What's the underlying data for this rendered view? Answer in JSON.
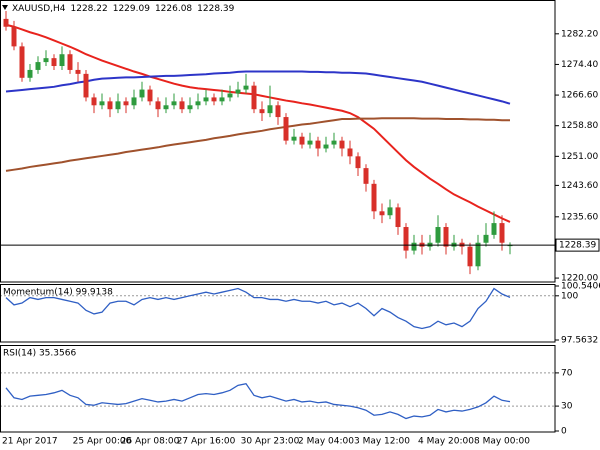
{
  "chart_data": [
    {
      "type": "candlestick",
      "title": "XAUUSD,H4",
      "header_values": [
        1228.22,
        1229.09,
        1226.08,
        1228.39
      ],
      "open": [
        1286,
        1284,
        1279,
        1271,
        1273,
        1275,
        1276,
        1274,
        1277,
        1273,
        1272,
        1266,
        1264,
        1265,
        1263,
        1265,
        1264,
        1266,
        1268,
        1265,
        1263,
        1264,
        1265,
        1263,
        1264,
        1265,
        1266,
        1265,
        1266,
        1267,
        1268,
        1269,
        1263,
        1262,
        1264,
        1261,
        1255,
        1256,
        1254,
        1255,
        1253,
        1254,
        1255,
        1253,
        1251,
        1248,
        1244,
        1237,
        1236,
        1238,
        1233,
        1227,
        1229,
        1228,
        1229,
        1233,
        1228,
        1229,
        1228,
        1223,
        1229,
        1231,
        1234,
        1228.22
      ],
      "high": [
        1288,
        1285.5,
        1280,
        1274.5,
        1276.5,
        1278,
        1277,
        1279,
        1278,
        1275,
        1273,
        1267,
        1267,
        1266,
        1267,
        1266,
        1268,
        1270,
        1269,
        1266,
        1266,
        1267,
        1266,
        1266,
        1267,
        1268,
        1267,
        1268,
        1269,
        1270,
        1272,
        1270,
        1265,
        1269,
        1265,
        1262,
        1258,
        1257,
        1257,
        1256,
        1256,
        1257,
        1256,
        1255,
        1252,
        1249,
        1245,
        1239,
        1240,
        1239,
        1234,
        1231,
        1231,
        1231,
        1236,
        1234,
        1231,
        1230,
        1229,
        1231,
        1234,
        1237,
        1236,
        1229.09
      ],
      "low": [
        1283,
        1278,
        1270,
        1270,
        1272,
        1274,
        1273,
        1273,
        1272,
        1270,
        1265,
        1262,
        1263,
        1261,
        1262,
        1262,
        1263,
        1265,
        1264,
        1261,
        1262,
        1263,
        1262,
        1262,
        1263,
        1264,
        1264,
        1264,
        1265,
        1266,
        1267,
        1262,
        1260,
        1261,
        1259,
        1254,
        1254,
        1253,
        1253,
        1251,
        1252,
        1253,
        1251,
        1249,
        1246,
        1242,
        1235,
        1234,
        1235,
        1231,
        1225,
        1226,
        1226,
        1227,
        1228,
        1226,
        1227,
        1226,
        1221,
        1222,
        1228,
        1230,
        1227,
        1226.08
      ],
      "close": [
        1284,
        1279,
        1271,
        1273,
        1275,
        1276,
        1274,
        1277,
        1273,
        1272,
        1266,
        1264,
        1265,
        1263,
        1265,
        1264,
        1266,
        1268,
        1265,
        1263,
        1264,
        1265,
        1263,
        1264,
        1265,
        1266,
        1265,
        1266,
        1267,
        1268,
        1269,
        1263,
        1262,
        1264,
        1261,
        1255,
        1256,
        1254,
        1255,
        1253,
        1254,
        1255,
        1253,
        1251,
        1248,
        1244,
        1237,
        1236,
        1238,
        1233,
        1227,
        1229,
        1228,
        1229,
        1233,
        1228,
        1229,
        1228,
        1223,
        1229,
        1231,
        1234,
        1229,
        1228.39
      ],
      "up_color": "#2e9b3e",
      "down_color": "#d8302a",
      "lines": [
        {
          "color": "#e8231d",
          "values": [
            1284.5,
            1284,
            1283.3,
            1282.6,
            1282,
            1281.3,
            1280.5,
            1279.7,
            1278.9,
            1278,
            1277,
            1276.2,
            1275.4,
            1274.7,
            1274,
            1273.3,
            1272.6,
            1272,
            1271.3,
            1270.7,
            1270.1,
            1269.5,
            1269,
            1268.6,
            1268.3,
            1268.1,
            1267.9,
            1267.7,
            1267.4,
            1267.2,
            1267,
            1266.8,
            1266.4,
            1266,
            1265.6,
            1265.2,
            1264.9,
            1264.5,
            1264.2,
            1263.8,
            1263.4,
            1263,
            1262.6,
            1262,
            1261,
            1259.5,
            1258,
            1256,
            1254,
            1252,
            1250,
            1248.3,
            1246.8,
            1245.3,
            1244,
            1242.6,
            1241.3,
            1240.3,
            1239.3,
            1238.2,
            1237.2,
            1236.2,
            1235.2,
            1234.3
          ]
        },
        {
          "color": "#2d35c8",
          "values": [
            1267.5,
            1267.7,
            1267.9,
            1268.1,
            1268.3,
            1268.5,
            1268.7,
            1269.1,
            1269.4,
            1269.8,
            1270.1,
            1270.5,
            1270.8,
            1270.9,
            1271,
            1271.1,
            1271.1,
            1271.2,
            1271.3,
            1271.4,
            1271.5,
            1271.5,
            1271.6,
            1271.7,
            1271.8,
            1271.9,
            1272.1,
            1272.2,
            1272.3,
            1272.5,
            1272.6,
            1272.6,
            1272.6,
            1272.6,
            1272.6,
            1272.6,
            1272.6,
            1272.6,
            1272.5,
            1272.5,
            1272.4,
            1272.4,
            1272.3,
            1272.3,
            1272.2,
            1272.1,
            1271.8,
            1271.5,
            1271.2,
            1270.9,
            1270.6,
            1270.3,
            1270,
            1269.5,
            1269,
            1268.5,
            1268,
            1267.5,
            1267,
            1266.5,
            1266,
            1265.5,
            1265,
            1264.4
          ]
        },
        {
          "color": "#a0522d",
          "values": [
            1247.3,
            1247.6,
            1247.9,
            1248.3,
            1248.6,
            1248.9,
            1249.2,
            1249.5,
            1249.9,
            1250.2,
            1250.5,
            1250.8,
            1251.1,
            1251.4,
            1251.7,
            1252.1,
            1252.4,
            1252.7,
            1253,
            1253.3,
            1253.7,
            1254,
            1254.3,
            1254.6,
            1254.9,
            1255.2,
            1255.6,
            1255.9,
            1256.2,
            1256.6,
            1256.9,
            1257.2,
            1257.5,
            1257.9,
            1258.2,
            1258.5,
            1258.8,
            1259.1,
            1259.3,
            1259.6,
            1259.9,
            1260.2,
            1260.5,
            1260.5,
            1260.6,
            1260.6,
            1260.6,
            1260.7,
            1260.7,
            1260.7,
            1260.7,
            1260.7,
            1260.6,
            1260.6,
            1260.6,
            1260.5,
            1260.5,
            1260.5,
            1260.4,
            1260.4,
            1260.3,
            1260.3,
            1260.2,
            1260.2
          ]
        }
      ],
      "last_price": 1228.39,
      "ylim": [
        1219,
        1290.3
      ],
      "yticks": [
        {
          "value": 1220,
          "label": "1220.00"
        },
        {
          "value": 1235.6,
          "label": "1235.60"
        },
        {
          "value": 1243.6,
          "label": "1243.60"
        },
        {
          "value": 1251,
          "label": "1251.00"
        },
        {
          "value": 1258.8,
          "label": "1258.80"
        },
        {
          "value": 1266.6,
          "label": "1266.60"
        },
        {
          "value": 1274.4,
          "label": "1274.40"
        },
        {
          "value": 1282.2,
          "label": "1282.20"
        }
      ]
    },
    {
      "type": "line",
      "title": "Momentum(14) 99.9138",
      "color": "#2f5fc4",
      "values": [
        99.9,
        99.5,
        99.6,
        99.9,
        99.8,
        99.9,
        99.9,
        99.8,
        99.7,
        99.6,
        99.2,
        99,
        99.1,
        99.6,
        99.7,
        99.7,
        99.5,
        99.8,
        99.9,
        99.8,
        99.9,
        99.8,
        99.9,
        100,
        100.1,
        100.2,
        100.1,
        100.2,
        100.3,
        100.4,
        100.2,
        99.9,
        99.9,
        99.8,
        99.8,
        99.7,
        99.8,
        99.7,
        99.7,
        99.6,
        99.7,
        99.5,
        99.6,
        99.4,
        99.6,
        99.3,
        98.9,
        99.3,
        99.1,
        98.8,
        98.6,
        98.3,
        98.2,
        98.3,
        98.6,
        98.4,
        98.5,
        98.3,
        98.6,
        99.3,
        99.7,
        100.4,
        100.1,
        99.9138
      ],
      "ylim": [
        97.5632,
        100.5406
      ],
      "yticks": [
        97.5632,
        100,
        100.5406
      ],
      "levels": [
        100
      ]
    },
    {
      "type": "line",
      "title": "RSI(14) 35.3566",
      "color": "#2f5fc4",
      "values": [
        52,
        40,
        38,
        42,
        43,
        44,
        46,
        49,
        43,
        40,
        32,
        31,
        34,
        33,
        32,
        33,
        36,
        39,
        37,
        35,
        36,
        38,
        36,
        40,
        44,
        45,
        44,
        46,
        49,
        55,
        57,
        43,
        40,
        42,
        39,
        36,
        38,
        35,
        36,
        34,
        35,
        32,
        31,
        30,
        28,
        25,
        19,
        20,
        23,
        20,
        15,
        18,
        17,
        19,
        26,
        23,
        25,
        24,
        26,
        29,
        34,
        42,
        37,
        35.3566
      ],
      "ylim": [
        0,
        100
      ],
      "yticks": [
        0,
        30,
        70
      ],
      "levels": [
        30,
        70
      ],
      "categories": [
        "21 Apr 2017",
        null,
        null,
        null,
        null,
        null,
        null,
        null,
        null,
        null,
        null,
        null,
        "25 Apr 00:00",
        null,
        null,
        null,
        null,
        null,
        "26 Apr 08:00",
        null,
        null,
        null,
        null,
        null,
        null,
        "27 Apr 16:00",
        null,
        null,
        null,
        null,
        null,
        null,
        null,
        "30 Apr 23:00",
        null,
        null,
        null,
        null,
        null,
        null,
        "2 May 04:00",
        null,
        null,
        null,
        null,
        null,
        null,
        "3 May 12:00",
        null,
        null,
        null,
        null,
        null,
        null,
        null,
        "4 May 20:00",
        null,
        null,
        null,
        null,
        null,
        null,
        "8 May 00:00",
        null
      ]
    }
  ]
}
